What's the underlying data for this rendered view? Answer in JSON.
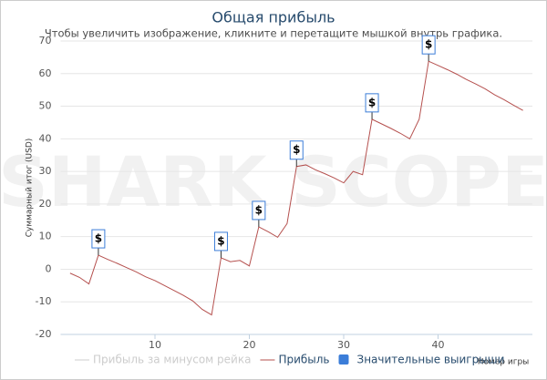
{
  "chart_data": {
    "type": "line",
    "title": "Общая прибыль",
    "subtitle": "Чтобы увеличить изображение, кликните и перетащите мышкой внутрь графика.",
    "watermark": "SHARK SCOPE",
    "y_label": "Суммарный итог (USD)",
    "x_label": "Номер игры",
    "xlim": [
      0,
      50
    ],
    "xticks": [
      10,
      20,
      30,
      40
    ],
    "ylim": [
      -20,
      70
    ],
    "yticks": [
      -20,
      -10,
      0,
      10,
      20,
      30,
      40,
      50,
      60,
      70
    ],
    "grid": true,
    "series": [
      {
        "name": "Прибыль за минусом рейка",
        "color": "#cccccc",
        "hidden": true
      },
      {
        "name": "Прибыль",
        "color": "#b5504e",
        "x": [
          1,
          2,
          3,
          4,
          5,
          6,
          7,
          8,
          9,
          10,
          11,
          12,
          13,
          14,
          15,
          16,
          17,
          18,
          19,
          20,
          21,
          22,
          23,
          24,
          25,
          26,
          27,
          28,
          29,
          30,
          31,
          32,
          33,
          34,
          35,
          36,
          37,
          38,
          39,
          40,
          41,
          42,
          43,
          44,
          45,
          46,
          47,
          48,
          49
        ],
        "values": [
          -1.2,
          -2.5,
          -4.5,
          4.3,
          3,
          1.8,
          0.5,
          -0.8,
          -2.3,
          -3.5,
          -5,
          -6.5,
          -8,
          -9.7,
          -12.3,
          -14,
          3.5,
          2.3,
          2.7,
          1,
          13,
          11.5,
          9.8,
          14,
          31.5,
          32,
          30.5,
          29.3,
          28,
          26.5,
          30,
          29,
          46,
          44.6,
          43.2,
          41.7,
          40,
          46,
          63.8,
          62.5,
          61.2,
          59.8,
          58.2,
          56.8,
          55.3,
          53.5,
          52,
          50.3,
          48.7
        ]
      },
      {
        "name": "Значительные выигрыши",
        "type": "flags",
        "color": "#3b7dd8",
        "label": "$",
        "x": [
          4,
          17,
          21,
          25,
          33,
          39
        ],
        "values": [
          4.3,
          3.5,
          13,
          31.5,
          46,
          63.8
        ]
      }
    ]
  }
}
